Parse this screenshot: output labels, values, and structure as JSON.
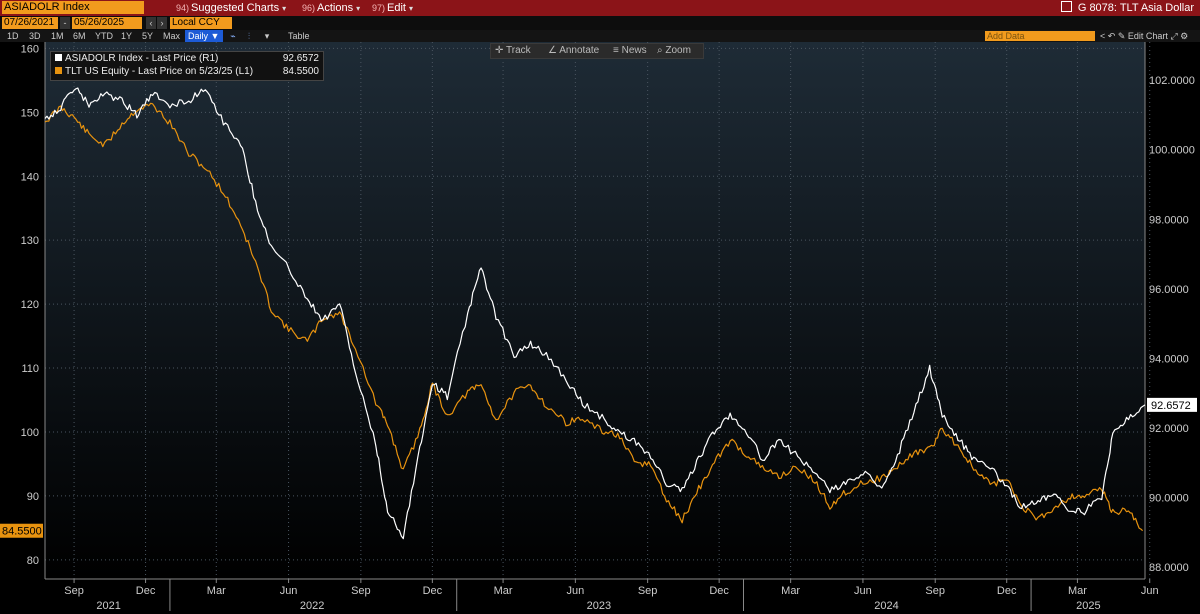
{
  "header": {
    "ticker": "ASIADOLR Index",
    "menus": [
      {
        "num": "94)",
        "label": "Suggested Charts"
      },
      {
        "num": "96)",
        "label": "Actions"
      },
      {
        "num": "97)",
        "label": "Edit"
      }
    ],
    "title": "G 8078: TLT Asia Dollar"
  },
  "controls": {
    "start_date": "07/26/2021",
    "end_date": "05/26/2025",
    "currency": "Local CCY",
    "periods": [
      "1D",
      "3D",
      "1M",
      "6M",
      "YTD",
      "1Y",
      "5Y",
      "Max"
    ],
    "frequency": "Daily",
    "table_label": "Table",
    "add_data_placeholder": "Add Data",
    "edit_chart": "Edit Chart"
  },
  "toolbar": {
    "track": "Track",
    "annotate": "Annotate",
    "news": "News",
    "zoom": "Zoom"
  },
  "colors": {
    "asiadolr": "#ffffff",
    "tlt": "#e8930f",
    "background": "#000000",
    "header": "#8b1418",
    "accent": "#f29b1d"
  },
  "chart_data": {
    "type": "line",
    "xlim": [
      "2021-07-26",
      "2025-05-26"
    ],
    "x_tick_months": [
      "Sep",
      "Dec",
      "Mar",
      "Jun",
      "Sep",
      "Dec",
      "Mar",
      "Jun",
      "Sep",
      "Dec",
      "Mar",
      "Jun",
      "Sep",
      "Dec",
      "Mar",
      "Jun"
    ],
    "x_tick_dates": [
      "2021-09-01",
      "2021-12-01",
      "2022-03-01",
      "2022-06-01",
      "2022-09-01",
      "2022-12-01",
      "2023-03-01",
      "2023-06-01",
      "2023-09-01",
      "2023-12-01",
      "2024-03-01",
      "2024-06-01",
      "2024-09-01",
      "2024-12-01",
      "2025-03-01",
      "2025-06-01"
    ],
    "years": [
      {
        "label": "2021",
        "date": "2021-10-15"
      },
      {
        "label": "2022",
        "date": "2022-07-01"
      },
      {
        "label": "2023",
        "date": "2023-07-01"
      },
      {
        "label": "2024",
        "date": "2024-07-01"
      },
      {
        "label": "2025",
        "date": "2025-03-15"
      }
    ],
    "year_boundaries": [
      "2022-01-01",
      "2023-01-01",
      "2024-01-01",
      "2025-01-01"
    ],
    "left_axis": {
      "ylim": [
        77,
        161
      ],
      "ticks": [
        "160",
        "150",
        "140",
        "130",
        "120",
        "110",
        "100",
        "90",
        "80"
      ]
    },
    "right_axis": {
      "ylim": [
        87.65,
        103.1
      ],
      "ticks": [
        "102.0000",
        "100.0000",
        "98.0000",
        "96.0000",
        "94.0000",
        "92.0000",
        "90.0000",
        "88.0000"
      ]
    },
    "series": [
      {
        "name": "ASIADOLR Index - Last Price (R1)",
        "axis": "right",
        "last_value": "92.6572",
        "points": [
          [
            "2021-07-26",
            100.9
          ],
          [
            "2021-08-15",
            101.2
          ],
          [
            "2021-09-01",
            101.8
          ],
          [
            "2021-09-20",
            101.3
          ],
          [
            "2021-10-10",
            101.6
          ],
          [
            "2021-11-01",
            101.4
          ],
          [
            "2021-11-20",
            101.0
          ],
          [
            "2021-12-10",
            101.6
          ],
          [
            "2022-01-01",
            101.3
          ],
          [
            "2022-01-25",
            101.4
          ],
          [
            "2022-02-15",
            101.8
          ],
          [
            "2022-03-10",
            100.8
          ],
          [
            "2022-04-01",
            100.2
          ],
          [
            "2022-04-20",
            98.5
          ],
          [
            "2022-05-10",
            97.2
          ],
          [
            "2022-06-01",
            96.6
          ],
          [
            "2022-06-25",
            95.7
          ],
          [
            "2022-07-15",
            95.1
          ],
          [
            "2022-08-05",
            95.6
          ],
          [
            "2022-08-25",
            93.6
          ],
          [
            "2022-09-20",
            91.5
          ],
          [
            "2022-10-05",
            89.6
          ],
          [
            "2022-10-25",
            88.9
          ],
          [
            "2022-11-15",
            91.4
          ],
          [
            "2022-12-01",
            93.3
          ],
          [
            "2022-12-20",
            92.9
          ],
          [
            "2023-01-15",
            95.3
          ],
          [
            "2023-02-01",
            96.6
          ],
          [
            "2023-02-20",
            95.2
          ],
          [
            "2023-03-15",
            94.1
          ],
          [
            "2023-04-05",
            94.4
          ],
          [
            "2023-04-25",
            94.1
          ],
          [
            "2023-05-20",
            93.4
          ],
          [
            "2023-06-10",
            92.7
          ],
          [
            "2023-07-05",
            92.3
          ],
          [
            "2023-07-25",
            91.9
          ],
          [
            "2023-08-15",
            91.6
          ],
          [
            "2023-09-05",
            91.2
          ],
          [
            "2023-09-25",
            90.4
          ],
          [
            "2023-10-15",
            90.2
          ],
          [
            "2023-11-05",
            91.1
          ],
          [
            "2023-11-25",
            91.9
          ],
          [
            "2023-12-15",
            92.4
          ],
          [
            "2024-01-05",
            91.9
          ],
          [
            "2024-01-25",
            91.1
          ],
          [
            "2024-02-15",
            91.6
          ],
          [
            "2024-03-10",
            91.2
          ],
          [
            "2024-04-01",
            90.7
          ],
          [
            "2024-04-20",
            90.2
          ],
          [
            "2024-05-10",
            90.4
          ],
          [
            "2024-06-01",
            90.7
          ],
          [
            "2024-06-25",
            90.3
          ],
          [
            "2024-07-15",
            91.2
          ],
          [
            "2024-08-05",
            92.5
          ],
          [
            "2024-08-25",
            93.7
          ],
          [
            "2024-09-10",
            92.4
          ],
          [
            "2024-09-30",
            91.7
          ],
          [
            "2024-10-20",
            91.1
          ],
          [
            "2024-11-10",
            90.9
          ],
          [
            "2024-12-01",
            90.3
          ],
          [
            "2024-12-20",
            89.7
          ],
          [
            "2025-01-10",
            89.9
          ],
          [
            "2025-01-30",
            90.1
          ],
          [
            "2025-02-20",
            89.6
          ],
          [
            "2025-03-10",
            89.6
          ],
          [
            "2025-04-01",
            90.0
          ],
          [
            "2025-04-15",
            91.8
          ],
          [
            "2025-05-05",
            92.3
          ],
          [
            "2025-05-26",
            92.66
          ]
        ]
      },
      {
        "name": "TLT US Equity - Last Price on 5/23/25 (L1)",
        "axis": "left",
        "last_value": "84.5500",
        "points": [
          [
            "2021-07-26",
            148.5
          ],
          [
            "2021-08-15",
            150.8
          ],
          [
            "2021-09-01",
            149.2
          ],
          [
            "2021-09-20",
            146.5
          ],
          [
            "2021-10-10",
            144.8
          ],
          [
            "2021-11-01",
            148.2
          ],
          [
            "2021-11-20",
            150.5
          ],
          [
            "2021-12-10",
            151.2
          ],
          [
            "2022-01-01",
            148.3
          ],
          [
            "2022-01-25",
            143.5
          ],
          [
            "2022-02-15",
            141.3
          ],
          [
            "2022-03-10",
            137.5
          ],
          [
            "2022-04-01",
            132.5
          ],
          [
            "2022-04-20",
            126.5
          ],
          [
            "2022-05-10",
            119.2
          ],
          [
            "2022-06-01",
            116.0
          ],
          [
            "2022-06-25",
            114.2
          ],
          [
            "2022-07-15",
            117.8
          ],
          [
            "2022-08-05",
            118.6
          ],
          [
            "2022-08-25",
            113.2
          ],
          [
            "2022-09-20",
            104.5
          ],
          [
            "2022-10-05",
            101.2
          ],
          [
            "2022-10-25",
            93.9
          ],
          [
            "2022-11-15",
            100.2
          ],
          [
            "2022-12-01",
            107.5
          ],
          [
            "2022-12-20",
            102.5
          ],
          [
            "2023-01-15",
            106.2
          ],
          [
            "2023-02-01",
            107.4
          ],
          [
            "2023-02-20",
            101.8
          ],
          [
            "2023-03-15",
            106.1
          ],
          [
            "2023-04-05",
            107.3
          ],
          [
            "2023-04-25",
            104.1
          ],
          [
            "2023-05-20",
            101.5
          ],
          [
            "2023-06-10",
            102.1
          ],
          [
            "2023-07-05",
            100.1
          ],
          [
            "2023-07-25",
            99.6
          ],
          [
            "2023-08-15",
            95.2
          ],
          [
            "2023-09-05",
            94.9
          ],
          [
            "2023-09-25",
            89.3
          ],
          [
            "2023-10-15",
            86.2
          ],
          [
            "2023-11-05",
            91.1
          ],
          [
            "2023-11-25",
            95.2
          ],
          [
            "2023-12-15",
            98.7
          ],
          [
            "2024-01-05",
            96.5
          ],
          [
            "2024-01-25",
            94.3
          ],
          [
            "2024-02-15",
            93.1
          ],
          [
            "2024-03-10",
            94.5
          ],
          [
            "2024-04-01",
            92.2
          ],
          [
            "2024-04-20",
            88.4
          ],
          [
            "2024-05-10",
            90.6
          ],
          [
            "2024-06-01",
            92.1
          ],
          [
            "2024-06-25",
            92.8
          ],
          [
            "2024-07-15",
            94.5
          ],
          [
            "2024-08-05",
            96.8
          ],
          [
            "2024-08-25",
            97.2
          ],
          [
            "2024-09-10",
            100.5
          ],
          [
            "2024-09-30",
            97.8
          ],
          [
            "2024-10-20",
            94.2
          ],
          [
            "2024-11-10",
            91.8
          ],
          [
            "2024-12-01",
            92.6
          ],
          [
            "2024-12-20",
            88.4
          ],
          [
            "2025-01-10",
            86.3
          ],
          [
            "2025-01-30",
            88.2
          ],
          [
            "2025-02-20",
            89.9
          ],
          [
            "2025-03-10",
            90.1
          ],
          [
            "2025-04-01",
            91.1
          ],
          [
            "2025-04-15",
            87.4
          ],
          [
            "2025-05-05",
            87.9
          ],
          [
            "2025-05-23",
            84.55
          ]
        ]
      }
    ]
  }
}
